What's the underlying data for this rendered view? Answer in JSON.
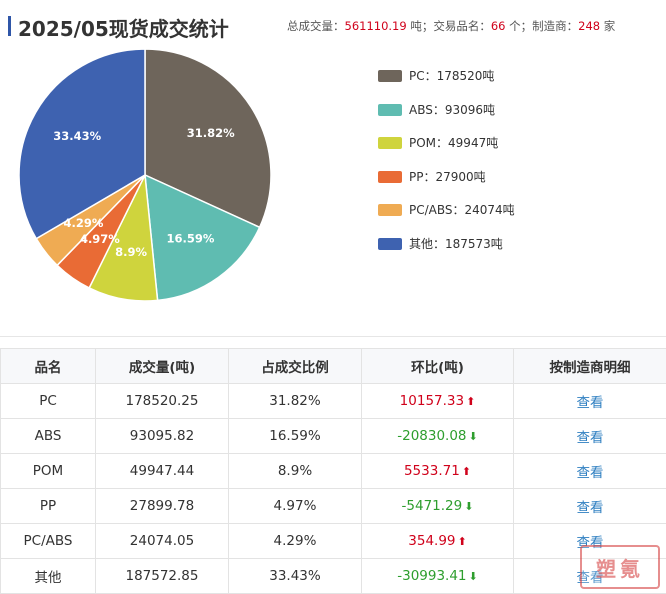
{
  "header": {
    "title": "2025/05现货成交统计",
    "summary_total_label": "总成交量：",
    "summary_total_value": "561110.19",
    "summary_total_unit": " 吨；交易品名：",
    "summary_products_value": "66",
    "summary_products_unit": " 个；制造商：",
    "summary_makers_value": "248",
    "summary_makers_unit": " 家"
  },
  "chart_data": {
    "type": "pie",
    "start_angle_deg": 90,
    "direction": "clockwise",
    "slices": [
      {
        "name": "PC",
        "value": 178520,
        "percent_label": "31.82%",
        "color": "#6e655b",
        "legend": "PC：178520吨"
      },
      {
        "name": "ABS",
        "value": 93096,
        "percent_label": "16.59%",
        "color": "#5fbcb1",
        "legend": "ABS：93096吨"
      },
      {
        "name": "POM",
        "value": 49947,
        "percent_label": "8.9%",
        "color": "#cfd43d",
        "legend": "POM：49947吨"
      },
      {
        "name": "PP",
        "value": 27900,
        "percent_label": "4.97%",
        "color": "#e96b35",
        "legend": "PP：27900吨"
      },
      {
        "name": "PC/ABS",
        "value": 24074,
        "percent_label": "4.29%",
        "color": "#efab53",
        "legend": "PC/ABS：24074吨"
      },
      {
        "name": "其他",
        "value": 187573,
        "percent_label": "33.43%",
        "color": "#3e62b0",
        "legend": "其他：187573吨"
      }
    ],
    "legend_position": "right"
  },
  "table": {
    "headers": [
      "品名",
      "成交量(吨)",
      "占成交比例",
      "环比(吨)",
      "按制造商明细"
    ],
    "rows": [
      {
        "name": "PC",
        "volume": "178520.25",
        "ratio": "31.82%",
        "change": "10157.33",
        "direction": "up",
        "link": "查看"
      },
      {
        "name": "ABS",
        "volume": "93095.82",
        "ratio": "16.59%",
        "change": "-20830.08",
        "direction": "down",
        "link": "查看"
      },
      {
        "name": "POM",
        "volume": "49947.44",
        "ratio": "8.9%",
        "change": "5533.71",
        "direction": "up",
        "link": "查看"
      },
      {
        "name": "PP",
        "volume": "27899.78",
        "ratio": "4.97%",
        "change": "-5471.29",
        "direction": "down",
        "link": "查看"
      },
      {
        "name": "PC/ABS",
        "volume": "24074.05",
        "ratio": "4.29%",
        "change": "354.99",
        "direction": "up",
        "link": "查看"
      },
      {
        "name": "其他",
        "volume": "187572.85",
        "ratio": "33.43%",
        "change": "-30993.41",
        "direction": "down",
        "link": "查看"
      }
    ]
  },
  "watermark": {
    "text": "塑氪"
  },
  "colors": {
    "up": "#d0021b",
    "down": "#2e9e2e",
    "link": "#2f7fc1",
    "accent": "#2f56a8"
  }
}
